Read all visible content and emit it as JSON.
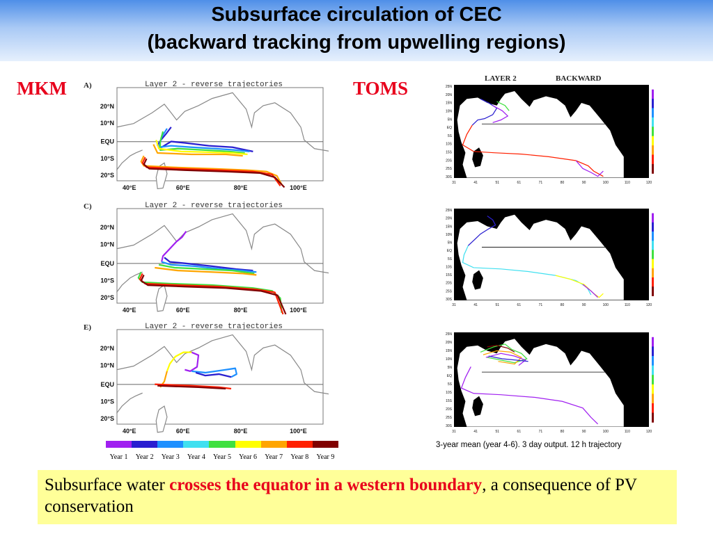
{
  "title": {
    "line1": "Subsurface circulation of CEC",
    "line2": "(backward tracking from upwelling regions)"
  },
  "labels": {
    "left": "MKM",
    "right": "TOMS"
  },
  "mkm_panels": [
    {
      "letter": "A)",
      "title": "Layer 2 - reverse trajectories"
    },
    {
      "letter": "C)",
      "title": "Layer 2 - reverse trajectories"
    },
    {
      "letter": "E)",
      "title": "Layer 2 - reverse trajectories"
    }
  ],
  "mkm_axes": {
    "y_ticks": [
      "20°N",
      "10°N",
      "EQU",
      "10°S",
      "20°S"
    ],
    "x_ticks": [
      "40°E",
      "60°E",
      "80°E",
      "100°E"
    ]
  },
  "toms_title": {
    "layer": "LAYER 2",
    "mode": "BACKWARD"
  },
  "toms_axes": {
    "y_ticks": [
      "25N",
      "20N",
      "15N",
      "10N",
      "5N",
      "EQ",
      "5S",
      "10S",
      "15S",
      "20S",
      "25S",
      "30S"
    ],
    "x_ticks": [
      "31",
      "41",
      "51",
      "61",
      "71",
      "80",
      "90",
      "100",
      "110",
      "120"
    ]
  },
  "legend": {
    "years": [
      "Year 1",
      "Year 2",
      "Year 3",
      "Year 4",
      "Year 5",
      "Year 6",
      "Year 7",
      "Year 8",
      "Year 9"
    ],
    "colors": [
      "#a020f0",
      "#2a1fd0",
      "#1e90ff",
      "#40e0f0",
      "#40e040",
      "#ffff00",
      "#ffa500",
      "#ff2000",
      "#800000"
    ]
  },
  "toms_caption": "3-year mean (year 4-6). 3 day output. 12 h trajectory",
  "note": {
    "pre": "Subsurface water ",
    "highlight": "crosses the equator in a western boundary",
    "post": ", a consequence of PV conservation"
  },
  "colors": {
    "highlight": "#e8001c",
    "note_bg": "#ffff99",
    "header": "#4f8fe8"
  }
}
